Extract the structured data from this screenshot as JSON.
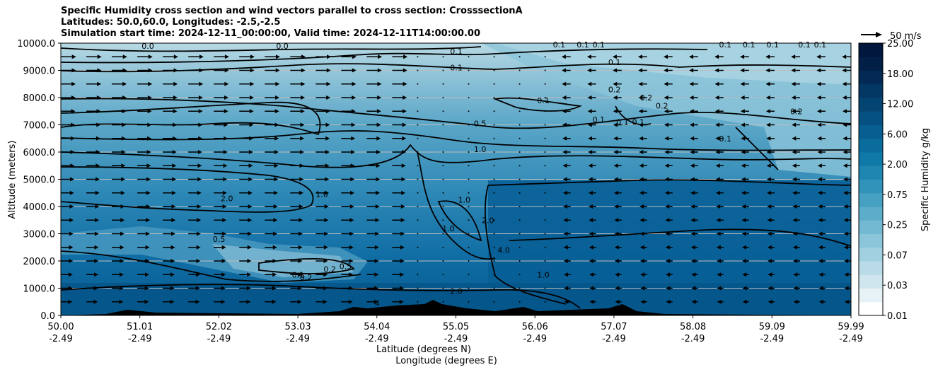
{
  "chart_data": {
    "type": "heatmap",
    "title_lines": [
      "Specific Humidity cross section and wind vectors parallel to cross section: CrosssectionA",
      "Latitudes: 50.0,60.0, Longitudes: -2.5,-2.5",
      "Simulation start time: 2024-12-11_00:00:00, Valid time: 2024-12-11T14:00:00.00"
    ],
    "ylabel": "Altitude (meters)",
    "xlabel_lines": [
      "Latitude (degrees N)",
      "Longitude (degrees E)"
    ],
    "ylim": [
      0,
      10000
    ],
    "y_ticks": [
      0,
      1000,
      2000,
      3000,
      4000,
      5000,
      6000,
      7000,
      8000,
      9000,
      10000
    ],
    "y_tick_labels": [
      "0.0",
      "1000.0",
      "2000.0",
      "3000.0",
      "4000.0",
      "5000.0",
      "6000.0",
      "7000.0",
      "8000.0",
      "9000.0",
      "10000.0"
    ],
    "x_ticks": [
      {
        "lat": "50.00",
        "lon": "-2.49"
      },
      {
        "lat": "51.01",
        "lon": "-2.49"
      },
      {
        "lat": "52.02",
        "lon": "-2.49"
      },
      {
        "lat": "53.03",
        "lon": "-2.49"
      },
      {
        "lat": "54.04",
        "lon": "-2.49"
      },
      {
        "lat": "55.05",
        "lon": "-2.49"
      },
      {
        "lat": "56.06",
        "lon": "-2.49"
      },
      {
        "lat": "57.07",
        "lon": "-2.49"
      },
      {
        "lat": "58.08",
        "lon": "-2.49"
      },
      {
        "lat": "59.09",
        "lon": "-2.49"
      },
      {
        "lat": "59.99",
        "lon": "-2.49"
      }
    ],
    "colorbar": {
      "label": "Specific Humidity g/kg",
      "tick_labels": [
        "0.01",
        "0.03",
        "0.07",
        "0.25",
        "0.75",
        "2.00",
        "6.00",
        "12.00",
        "18.00",
        "25.00"
      ]
    },
    "quiver_key": "50 m/s",
    "contour_labels": [
      {
        "text": "0.0",
        "lat": 51.1,
        "alt": 9900
      },
      {
        "text": "0.0",
        "lat": 52.8,
        "alt": 9900
      },
      {
        "text": "0.1",
        "lat": 55.0,
        "alt": 9700
      },
      {
        "text": "0.1",
        "lat": 55.0,
        "alt": 9100
      },
      {
        "text": "0.1",
        "lat": 57.0,
        "alt": 9300
      },
      {
        "text": "0.1",
        "lat": 56.3,
        "alt": 9950
      },
      {
        "text": "0.1",
        "lat": 56.6,
        "alt": 9950
      },
      {
        "text": "0.1",
        "lat": 56.8,
        "alt": 9950
      },
      {
        "text": "0.1",
        "lat": 58.4,
        "alt": 9950
      },
      {
        "text": "0.1",
        "lat": 58.7,
        "alt": 9950
      },
      {
        "text": "0.1",
        "lat": 59.0,
        "alt": 9950
      },
      {
        "text": "0.1",
        "lat": 59.4,
        "alt": 9950
      },
      {
        "text": "0.1",
        "lat": 59.6,
        "alt": 9950
      },
      {
        "text": "0.2",
        "lat": 57.0,
        "alt": 8300
      },
      {
        "text": "0.2",
        "lat": 57.4,
        "alt": 8000
      },
      {
        "text": "0.2",
        "lat": 57.6,
        "alt": 7700
      },
      {
        "text": "0.2",
        "lat": 59.3,
        "alt": 7500
      },
      {
        "text": "0.1",
        "lat": 56.1,
        "alt": 7900
      },
      {
        "text": "0.1",
        "lat": 56.8,
        "alt": 7200
      },
      {
        "text": "0.1",
        "lat": 57.1,
        "alt": 7100
      },
      {
        "text": "0.1",
        "lat": 57.3,
        "alt": 7100
      },
      {
        "text": "0.1",
        "lat": 58.4,
        "alt": 6500
      },
      {
        "text": "0.5",
        "lat": 55.3,
        "alt": 7050
      },
      {
        "text": "1.0",
        "lat": 55.3,
        "alt": 6100
      },
      {
        "text": "1.0",
        "lat": 53.3,
        "alt": 4450
      },
      {
        "text": "1.0",
        "lat": 55.1,
        "alt": 4250
      },
      {
        "text": "1.0",
        "lat": 54.9,
        "alt": 3200
      },
      {
        "text": "1.0",
        "lat": 56.1,
        "alt": 1500
      },
      {
        "text": "2.0",
        "lat": 52.1,
        "alt": 4300
      },
      {
        "text": "2.0",
        "lat": 55.4,
        "alt": 3500
      },
      {
        "text": "2.0",
        "lat": 55.0,
        "alt": 900
      },
      {
        "text": "4.0",
        "lat": 55.6,
        "alt": 2400
      },
      {
        "text": "4",
        "lat": 54.0,
        "alt": 450
      },
      {
        "text": "4",
        "lat": 54.6,
        "alt": 300
      },
      {
        "text": "0.5",
        "lat": 52.0,
        "alt": 2800
      },
      {
        "text": "0.5",
        "lat": 53.6,
        "alt": 1800
      },
      {
        "text": "0.2",
        "lat": 53.4,
        "alt": 1700
      },
      {
        "text": "0.1",
        "lat": 53.0,
        "alt": 1500
      },
      {
        "text": "0.2",
        "lat": 53.1,
        "alt": 1400
      }
    ],
    "wind_u_sign": "eastward (positive) west of 55.0N, westward (negative) north of 56.5N"
  }
}
